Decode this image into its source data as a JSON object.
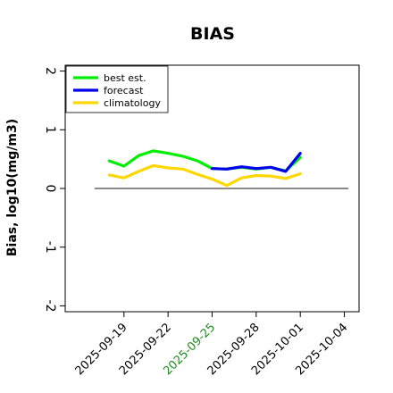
{
  "chart_data": {
    "type": "line",
    "title": "BIAS",
    "xlabel": "",
    "ylabel": "Bias, log10(mg/m3)",
    "ylim": [
      -2.1,
      2.1
    ],
    "yticks": [
      -2,
      -1,
      0,
      1,
      2
    ],
    "xlim": [
      "2025-09-15",
      "2025-10-05"
    ],
    "xticks": [
      "2025-09-19",
      "2025-09-22",
      "2025-09-25",
      "2025-09-28",
      "2025-10-01",
      "2025-10-04"
    ],
    "highlight_tick": "2025-09-25",
    "highlight_color": "#228b22",
    "reference_line": 0,
    "grid": false,
    "legend": "top-left",
    "series": [
      {
        "name": "best est.",
        "color": "#00ee00",
        "x": [
          "2025-09-18",
          "2025-09-19",
          "2025-09-20",
          "2025-09-21",
          "2025-09-22",
          "2025-09-23",
          "2025-09-24",
          "2025-09-25",
          "2025-09-26",
          "2025-09-27",
          "2025-09-28",
          "2025-09-29",
          "2025-09-30",
          "2025-10-01"
        ],
        "values": [
          0.47,
          0.38,
          0.56,
          0.64,
          0.6,
          0.55,
          0.47,
          0.34,
          0.33,
          0.36,
          0.33,
          0.36,
          0.3,
          0.53
        ]
      },
      {
        "name": "forecast",
        "color": "#0000ee",
        "x": [
          "2025-09-25",
          "2025-09-26",
          "2025-09-27",
          "2025-09-28",
          "2025-09-29",
          "2025-09-30",
          "2025-10-01"
        ],
        "values": [
          0.34,
          0.33,
          0.37,
          0.34,
          0.36,
          0.29,
          0.6
        ]
      },
      {
        "name": "climatology",
        "color": "#ffd700",
        "x": [
          "2025-09-18",
          "2025-09-19",
          "2025-09-20",
          "2025-09-21",
          "2025-09-22",
          "2025-09-23",
          "2025-09-24",
          "2025-09-25",
          "2025-09-26",
          "2025-09-27",
          "2025-09-28",
          "2025-09-29",
          "2025-09-30",
          "2025-10-01"
        ],
        "values": [
          0.23,
          0.18,
          0.29,
          0.39,
          0.35,
          0.33,
          0.24,
          0.16,
          0.05,
          0.18,
          0.22,
          0.21,
          0.17,
          0.25
        ]
      }
    ]
  }
}
